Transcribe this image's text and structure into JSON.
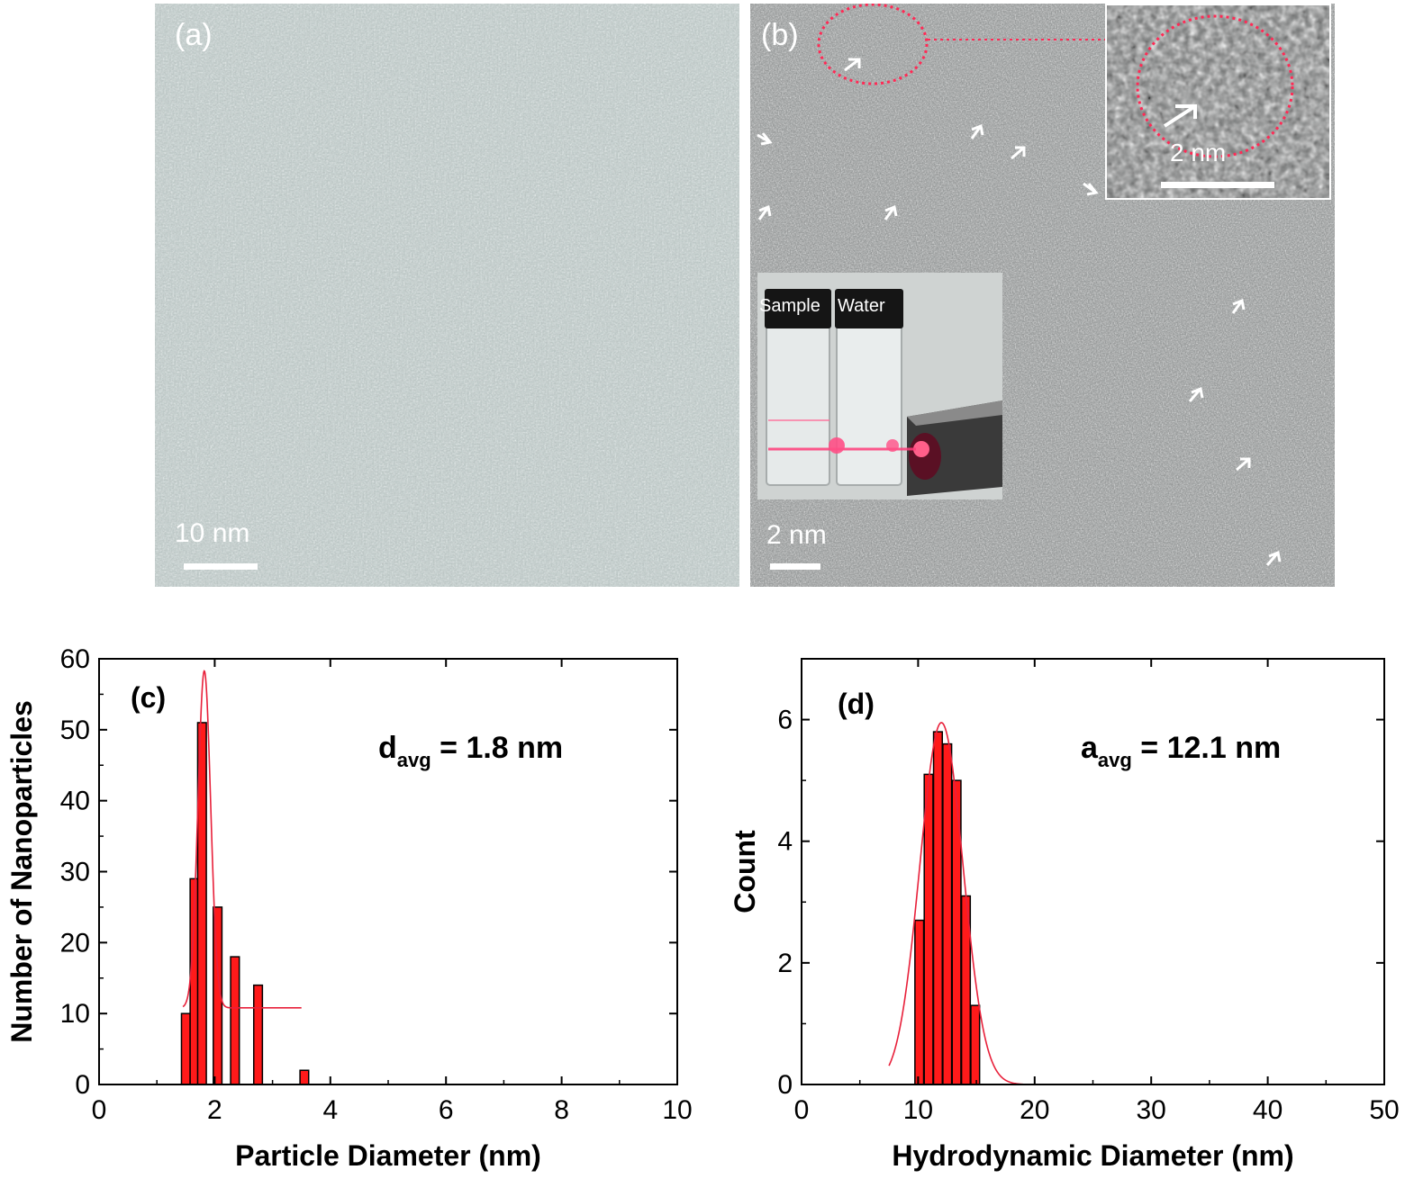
{
  "panels": {
    "a": {
      "tag": "(a)",
      "scale_label": "10 nm"
    },
    "b": {
      "tag": "(b)",
      "scale_label": "2 nm",
      "inset_scale_label": "2 nm",
      "vials": {
        "left_label": "Sample",
        "right_label": "Water"
      }
    }
  },
  "chart_data": [
    {
      "type": "bar",
      "panel_label": "(c)",
      "annotation": {
        "main": "d",
        "sub": "avg",
        "rest": " = 1.8 nm"
      },
      "xlabel": "Particle Diameter (nm)",
      "ylabel": "Number of Nanoparticles",
      "xlim": [
        0,
        10
      ],
      "ylim": [
        0,
        60
      ],
      "xticks": [
        0,
        2,
        4,
        6,
        8,
        10
      ],
      "yticks": [
        0,
        10,
        20,
        30,
        40,
        50,
        60
      ],
      "bar_width": 0.15,
      "series": [
        {
          "x": [
            1.5,
            1.65,
            1.78,
            2.05,
            2.35,
            2.75,
            3.55
          ],
          "values": [
            10,
            29,
            51,
            25,
            18,
            14,
            2
          ]
        }
      ],
      "fit": {
        "type": "gaussian",
        "center": 1.82,
        "sigma": 0.11,
        "amplitude": 47.5,
        "baseline": 10.8,
        "x_range": [
          1.45,
          3.5
        ]
      },
      "bar_color": "#ff1a1a",
      "fit_color": "#e8203a"
    },
    {
      "type": "bar",
      "panel_label": "(d)",
      "annotation": {
        "main": "a",
        "sub": "avg",
        "rest": " = 12.1 nm"
      },
      "xlabel": "Hydrodynamic Diameter (nm)",
      "ylabel": "Count",
      "xlim": [
        0,
        50
      ],
      "ylim": [
        0,
        7
      ],
      "xticks": [
        0,
        10,
        20,
        30,
        40,
        50
      ],
      "yticks": [
        0,
        2,
        4,
        6
      ],
      "bar_width": 0.75,
      "series": [
        {
          "x": [
            10.1,
            10.9,
            11.7,
            12.5,
            13.3,
            14.1,
            14.9
          ],
          "values": [
            2.7,
            5.1,
            5.8,
            5.6,
            5.0,
            3.1,
            1.3
          ]
        }
      ],
      "fit": {
        "type": "gaussian",
        "center": 12.0,
        "sigma": 1.85,
        "amplitude": 5.95,
        "baseline": 0,
        "x_range": [
          7.5,
          19
        ]
      },
      "bar_color": "#ff1a1a",
      "fit_color": "#e8203a"
    }
  ]
}
